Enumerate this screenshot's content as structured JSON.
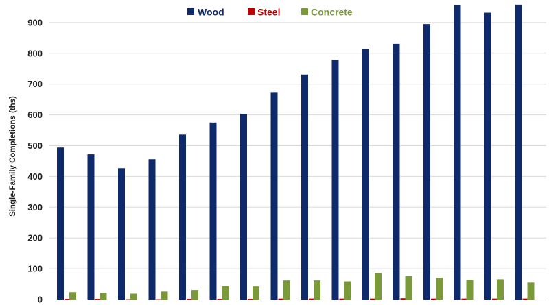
{
  "chart_data": {
    "type": "bar",
    "title": "",
    "xlabel": "",
    "ylabel": "Single-Family Completions (ths)",
    "ylim": [
      0,
      1000
    ],
    "yticks": [
      0,
      100,
      200,
      300,
      400,
      500,
      600,
      700,
      800,
      900
    ],
    "grid": true,
    "legend_position": "top-center",
    "categories": [
      "",
      "",
      "",
      "",
      "",
      "",
      "",
      "",
      "",
      "",
      "",
      "",
      "",
      "",
      "",
      "",
      ""
    ],
    "series": [
      {
        "name": "Wood",
        "color": "#0f2a6b",
        "values": [
          494,
          472,
          427,
          456,
          536,
          575,
          603,
          674,
          731,
          779,
          815,
          831,
          895,
          956,
          932,
          958,
          0
        ]
      },
      {
        "name": "Steel",
        "color": "#c00000",
        "values": [
          2,
          2,
          1,
          1,
          2,
          2,
          2,
          3,
          3,
          3,
          3,
          4,
          3,
          3,
          3,
          3,
          3
        ]
      },
      {
        "name": "Concrete",
        "color": "#7a9a3a",
        "values": [
          24,
          22,
          19,
          26,
          31,
          43,
          42,
          62,
          62,
          59,
          86,
          76,
          71,
          64,
          66,
          55,
          0
        ]
      }
    ]
  }
}
